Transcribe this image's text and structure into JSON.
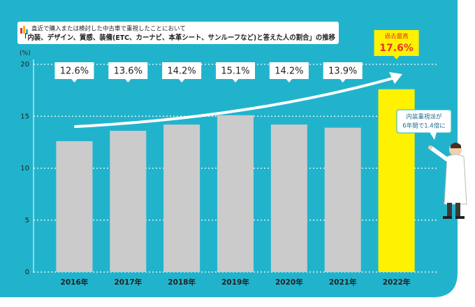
{
  "chart_data": {
    "type": "bar",
    "subtitle": "直近で購入または検討した中古車で重視したことにおいて",
    "title": "「内装、デザイン、質感、装備(ETC、カーナビ、本革シート、サンルーフなど)と答えた人の割合」の推移",
    "y_unit": "(%)",
    "categories": [
      "2016年",
      "2017年",
      "2018年",
      "2019年",
      "2020年",
      "2021年",
      "2022年"
    ],
    "values": [
      12.6,
      13.6,
      14.2,
      15.1,
      14.2,
      13.9,
      17.6
    ],
    "value_labels": [
      "12.6%",
      "13.6%",
      "14.2%",
      "15.1%",
      "14.2%",
      "13.9%",
      "17.6%"
    ],
    "colors": [
      "#cbcbcb",
      "#cbcbcb",
      "#cbcbcb",
      "#cbcbcb",
      "#cbcbcb",
      "#cbcbcb",
      "#fff200"
    ],
    "ylim": [
      0,
      20
    ],
    "yticks": [
      0,
      5,
      10,
      15,
      20
    ],
    "grid": true,
    "highlight_label": "過去最高",
    "callout": [
      "内装重視派が",
      "6年間で1.4倍に"
    ]
  }
}
